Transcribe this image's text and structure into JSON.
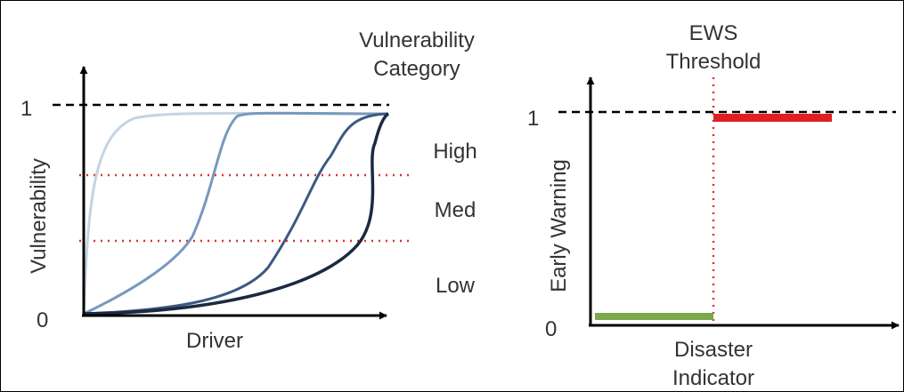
{
  "left_panel": {
    "y_axis_label": "Vulnerability",
    "x_axis_label": "Driver",
    "tick_zero": "0",
    "tick_one": "1",
    "category_title_line1": "Vulnerability",
    "category_title_line2": "Category",
    "categories": [
      "High",
      "Med",
      "Low"
    ],
    "curve_colors": [
      "#c5d3e2",
      "#7898be",
      "#3c5a80",
      "#1a2a40"
    ]
  },
  "right_panel": {
    "y_axis_label": "Early Warning",
    "x_axis_label_line1": "Disaster",
    "x_axis_label_line2": "Indicator",
    "threshold_label_line1": "EWS",
    "threshold_label_line2": "Threshold",
    "tick_zero": "0",
    "tick_one": "1",
    "low_color": "#7aa84a",
    "high_color": "#e02020"
  }
}
